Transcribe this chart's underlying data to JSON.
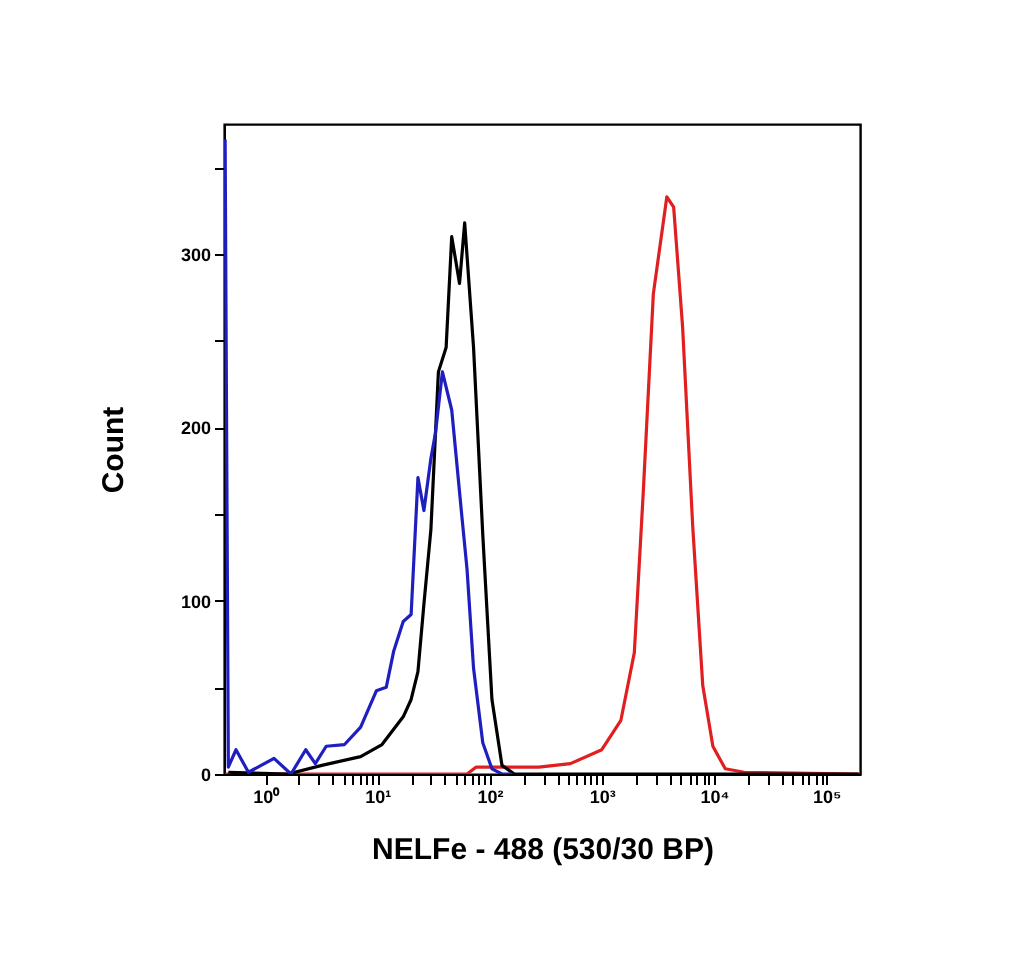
{
  "chart_data": {
    "type": "line",
    "xlabel": "NELFe - 488 (530/30 BP)",
    "ylabel": "Count",
    "log": "x",
    "grid": false,
    "marker": "none",
    "line_style": "solid",
    "xlim": [
      0.43,
      200000
    ],
    "ylim": [
      0,
      375
    ],
    "xticks": [
      {
        "value": 1,
        "label": "10⁰"
      },
      {
        "value": 10,
        "label": "10¹"
      },
      {
        "value": 100,
        "label": "10²"
      },
      {
        "value": 1000,
        "label": "10³"
      },
      {
        "value": 10000,
        "label": "10⁴"
      },
      {
        "value": 100000,
        "label": "10⁵"
      },
      {
        "value": 2,
        "label": null
      },
      {
        "value": 3,
        "label": null
      },
      {
        "value": 4,
        "label": null
      },
      {
        "value": 5,
        "label": null
      },
      {
        "value": 6,
        "label": null
      },
      {
        "value": 7,
        "label": null
      },
      {
        "value": 8,
        "label": null
      },
      {
        "value": 9,
        "label": null
      },
      {
        "value": 20,
        "label": null
      },
      {
        "value": 30,
        "label": null
      },
      {
        "value": 40,
        "label": null
      },
      {
        "value": 50,
        "label": null
      },
      {
        "value": 60,
        "label": null
      },
      {
        "value": 70,
        "label": null
      },
      {
        "value": 80,
        "label": null
      },
      {
        "value": 90,
        "label": null
      },
      {
        "value": 200,
        "label": null
      },
      {
        "value": 300,
        "label": null
      },
      {
        "value": 400,
        "label": null
      },
      {
        "value": 500,
        "label": null
      },
      {
        "value": 600,
        "label": null
      },
      {
        "value": 700,
        "label": null
      },
      {
        "value": 800,
        "label": null
      },
      {
        "value": 900,
        "label": null
      },
      {
        "value": 2000,
        "label": null
      },
      {
        "value": 3000,
        "label": null
      },
      {
        "value": 4000,
        "label": null
      },
      {
        "value": 5000,
        "label": null
      },
      {
        "value": 6000,
        "label": null
      },
      {
        "value": 7000,
        "label": null
      },
      {
        "value": 8000,
        "label": null
      },
      {
        "value": 9000,
        "label": null
      },
      {
        "value": 20000,
        "label": null
      },
      {
        "value": 30000,
        "label": null
      },
      {
        "value": 40000,
        "label": null
      },
      {
        "value": 50000,
        "label": null
      },
      {
        "value": 60000,
        "label": null
      },
      {
        "value": 70000,
        "label": null
      },
      {
        "value": 80000,
        "label": null
      },
      {
        "value": 90000,
        "label": null
      }
    ],
    "yticks": [
      0,
      100,
      200,
      300,
      {
        "value": 50,
        "label": null
      },
      {
        "value": 150,
        "label": null
      },
      {
        "value": 250,
        "label": null
      },
      {
        "value": 350,
        "label": null
      }
    ],
    "series": [
      {
        "color": "#e02020",
        "x": [
          0.44,
          63,
          76,
          129,
          275,
          525,
          1000,
          1480,
          1950,
          2340,
          2880,
          3800,
          4370,
          5250,
          6460,
          7940,
          9770,
          12600,
          18600,
          195000
        ],
        "values": [
          0,
          0,
          4,
          4,
          4,
          6,
          14,
          31,
          70,
          162,
          277,
          333,
          327,
          258,
          143,
          51,
          16,
          3,
          1,
          0
        ]
      },
      {
        "color": "#000000",
        "x": [
          0.47,
          1.6,
          3.2,
          7.1,
          11,
          17,
          20,
          23,
          26,
          30,
          35,
          41,
          46,
          54,
          60,
          72,
          87,
          105,
          129,
          166,
          195000
        ],
        "values": [
          1,
          0,
          5,
          10,
          17,
          33,
          43,
          59,
          98,
          141,
          232,
          246,
          310,
          283,
          318,
          246,
          138,
          43,
          5,
          0,
          0
        ]
      },
      {
        "color": "#1f1fc0",
        "x": [
          0.44,
          0.47,
          0.55,
          0.71,
          1.2,
          1.7,
          2.3,
          2.8,
          3.5,
          5.1,
          7.1,
          9.8,
          12,
          14,
          17,
          20,
          23,
          26,
          30,
          33,
          38,
          46,
          56,
          63,
          72,
          87,
          105,
          129,
          160
        ],
        "values": [
          366,
          4,
          14,
          1,
          9,
          0,
          14,
          6,
          16,
          17,
          27,
          48,
          50,
          71,
          88,
          92,
          171,
          152,
          182,
          197,
          232,
          210,
          152,
          118,
          61,
          18,
          3,
          0,
          0
        ]
      }
    ]
  }
}
